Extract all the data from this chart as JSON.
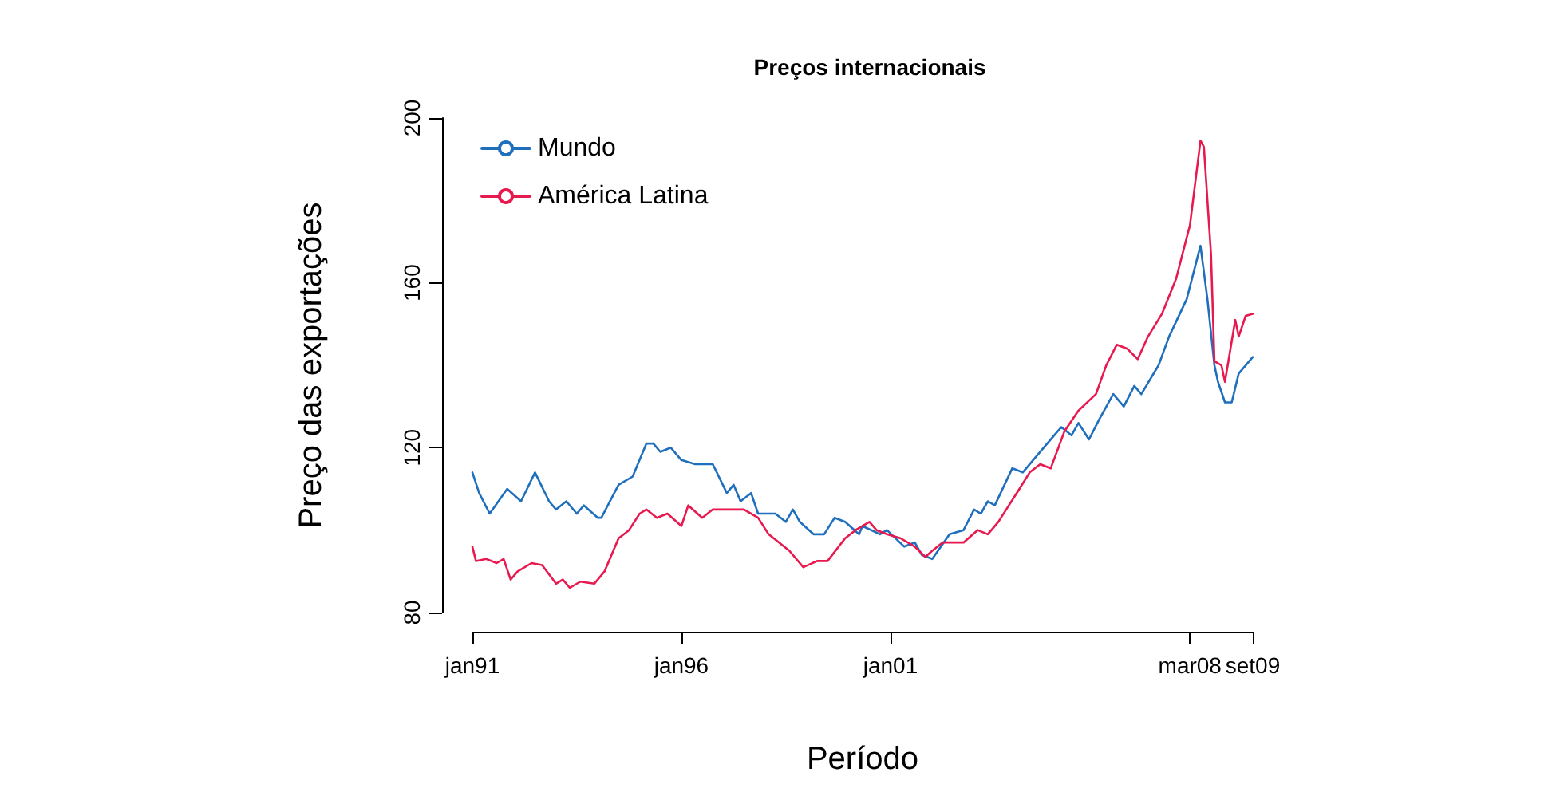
{
  "chart_data": {
    "type": "line",
    "title": "Preços internacionais",
    "xlabel": "Período",
    "ylabel": "Preço das exportações",
    "xlim": [
      "1991-01",
      "2009-09"
    ],
    "xticks": [
      {
        "value": "1991-01",
        "label": "jan91"
      },
      {
        "value": "1996-01",
        "label": "jan96"
      },
      {
        "value": "2001-01",
        "label": "jan01"
      },
      {
        "value": "2008-03",
        "label": "mar08"
      },
      {
        "value": "2009-09",
        "label": "set09"
      }
    ],
    "ylim": [
      80,
      200
    ],
    "yticks": [
      80,
      120,
      160,
      200
    ],
    "grid": false,
    "legend": "top left",
    "line_style": "solid",
    "series": [
      {
        "name": "Mundo",
        "color": "#1f6fbd",
        "x": [
          "1991-01",
          "1991-03",
          "1991-06",
          "1991-11",
          "1992-03",
          "1992-07",
          "1992-11",
          "1993-01",
          "1993-04",
          "1993-07",
          "1993-09",
          "1994-01",
          "1994-02",
          "1994-07",
          "1994-11",
          "1995-03",
          "1995-05",
          "1995-07",
          "1995-10",
          "1996-01",
          "1996-05",
          "1996-10",
          "1997-02",
          "1997-04",
          "1997-06",
          "1997-09",
          "1997-11",
          "1998-04",
          "1998-07",
          "1998-09",
          "1998-11",
          "1999-03",
          "1999-06",
          "1999-09",
          "1999-12",
          "2000-04",
          "2000-05",
          "2000-10",
          "2000-12",
          "2001-05",
          "2001-08",
          "2001-10",
          "2002-01",
          "2002-06",
          "2002-10",
          "2003-01",
          "2003-03",
          "2003-05",
          "2003-07",
          "2003-12",
          "2004-03",
          "2004-07",
          "2004-12",
          "2005-02",
          "2005-05",
          "2005-07",
          "2005-10",
          "2006-01",
          "2006-05",
          "2006-08",
          "2006-11",
          "2007-01",
          "2007-06",
          "2007-09",
          "2008-02",
          "2008-06",
          "2008-08",
          "2008-10",
          "2008-11",
          "2009-01",
          "2009-03",
          "2009-05",
          "2009-09"
        ],
        "values": [
          114,
          109,
          104,
          110,
          107,
          114,
          107,
          105,
          107,
          104,
          106,
          103,
          103,
          111,
          113,
          121,
          121,
          119,
          120,
          117,
          116,
          116,
          109,
          111,
          107,
          109,
          104,
          104,
          102,
          105,
          102,
          99,
          99,
          103,
          102,
          99,
          101,
          99,
          100,
          96,
          97,
          94,
          93,
          99,
          100,
          105,
          104,
          107,
          106,
          115,
          114,
          118,
          123,
          125,
          123,
          126,
          122,
          127,
          133,
          130,
          135,
          133,
          140,
          147,
          156,
          169,
          156,
          140,
          136,
          131,
          131,
          138,
          142
        ]
      },
      {
        "name": "América Latina",
        "color": "#e8194f",
        "x": [
          "1991-01",
          "1991-02",
          "1991-05",
          "1991-08",
          "1991-10",
          "1991-12",
          "1992-02",
          "1992-06",
          "1992-09",
          "1993-01",
          "1993-03",
          "1993-05",
          "1993-08",
          "1993-12",
          "1994-03",
          "1994-07",
          "1994-10",
          "1995-01",
          "1995-03",
          "1995-06",
          "1995-09",
          "1996-01",
          "1996-03",
          "1996-07",
          "1996-10",
          "1997-02",
          "1997-07",
          "1997-11",
          "1998-02",
          "1998-08",
          "1998-12",
          "1999-04",
          "1999-07",
          "1999-12",
          "2000-03",
          "2000-07",
          "2000-09",
          "2000-12",
          "2001-04",
          "2001-08",
          "2001-11",
          "2002-01",
          "2002-04",
          "2002-10",
          "2003-02",
          "2003-05",
          "2003-08",
          "2004-02",
          "2004-05",
          "2004-08",
          "2004-11",
          "2005-03",
          "2005-07",
          "2005-12",
          "2006-03",
          "2006-06",
          "2006-09",
          "2006-12",
          "2007-03",
          "2007-07",
          "2007-11",
          "2008-03",
          "2008-06",
          "2008-07",
          "2008-09",
          "2008-10",
          "2008-12",
          "2009-01",
          "2009-04",
          "2009-05",
          "2009-07",
          "2009-09"
        ],
        "values": [
          96,
          92.5,
          93,
          92,
          93,
          88,
          90,
          92,
          91.5,
          87,
          88,
          86,
          87.5,
          87,
          90,
          98,
          100,
          104,
          105,
          103,
          104,
          101,
          106,
          103,
          105,
          105,
          105,
          103,
          99,
          95,
          91,
          92.5,
          92.5,
          98,
          100,
          102,
          100,
          99,
          98,
          96,
          93.5,
          95,
          97,
          97,
          100,
          99,
          102,
          110,
          114,
          116,
          115,
          124,
          129,
          133,
          140,
          145,
          144,
          141.5,
          147,
          152.5,
          161,
          174,
          194.5,
          193,
          167,
          141,
          140,
          136,
          151,
          147,
          152,
          152.5
        ]
      }
    ]
  }
}
